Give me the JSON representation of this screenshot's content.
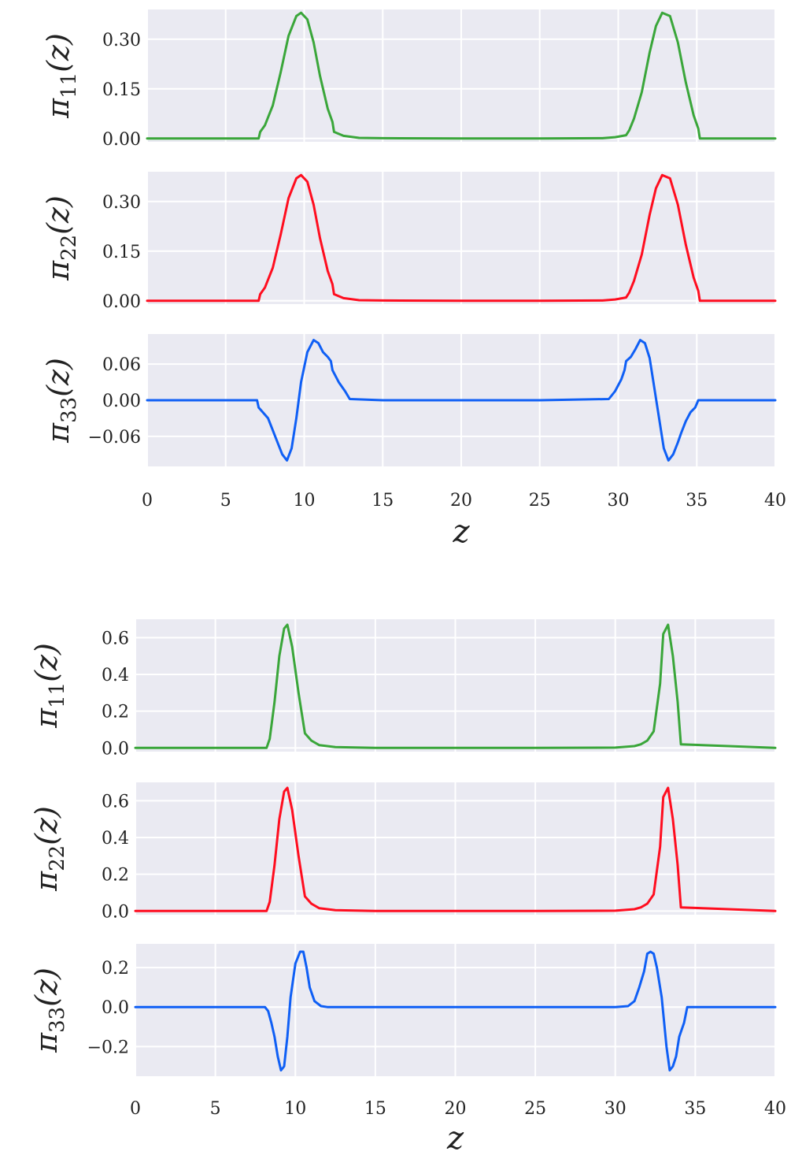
{
  "colors": {
    "green": "#3aa63a",
    "red": "#ff0d1f",
    "blue": "#0f5ff5",
    "plot_background": "#eaeaf2",
    "grid": "#ffffff"
  },
  "chart_data": [
    {
      "type": "line",
      "xlabel": "z",
      "xlim": [
        0,
        40
      ],
      "xticks": [
        "0",
        "5",
        "10",
        "15",
        "20",
        "25",
        "30",
        "35",
        "40"
      ],
      "grid": true,
      "subplots": [
        {
          "ylabel": "π11(z)",
          "ylim": [
            -0.01,
            0.39
          ],
          "yticks": [
            "0.00",
            "0.15",
            "0.30"
          ],
          "ytick_values": [
            0,
            0.15,
            0.3
          ],
          "color": "#3aa63a",
          "x": [
            0,
            7.1,
            7.2,
            7.5,
            8.0,
            8.5,
            9.0,
            9.5,
            9.8,
            10.2,
            10.6,
            11.0,
            11.5,
            11.8,
            11.9,
            12.5,
            13.5,
            15,
            20,
            25,
            29,
            29.8,
            30.5,
            30.7,
            31,
            31.5,
            32,
            32.4,
            32.8,
            33.3,
            33.8,
            34.3,
            34.8,
            35.1,
            35.2,
            40
          ],
          "y": [
            0,
            0,
            0.02,
            0.04,
            0.1,
            0.2,
            0.31,
            0.37,
            0.38,
            0.36,
            0.29,
            0.19,
            0.09,
            0.05,
            0.02,
            0.008,
            0.002,
            0.001,
            0,
            0,
            0.001,
            0.004,
            0.01,
            0.025,
            0.06,
            0.14,
            0.26,
            0.34,
            0.38,
            0.37,
            0.29,
            0.17,
            0.07,
            0.03,
            0,
            0
          ]
        },
        {
          "ylabel": "π22(z)",
          "ylim": [
            -0.01,
            0.39
          ],
          "yticks": [
            "0.00",
            "0.15",
            "0.30"
          ],
          "ytick_values": [
            0,
            0.15,
            0.3
          ],
          "color": "#ff0d1f",
          "x": [
            0,
            7.1,
            7.2,
            7.5,
            8.0,
            8.5,
            9.0,
            9.5,
            9.8,
            10.2,
            10.6,
            11.0,
            11.5,
            11.8,
            11.9,
            12.5,
            13.5,
            15,
            20,
            25,
            29,
            29.8,
            30.5,
            30.7,
            31,
            31.5,
            32,
            32.4,
            32.8,
            33.3,
            33.8,
            34.3,
            34.8,
            35.1,
            35.2,
            40
          ],
          "y": [
            0,
            0,
            0.02,
            0.04,
            0.1,
            0.2,
            0.31,
            0.37,
            0.38,
            0.36,
            0.29,
            0.19,
            0.09,
            0.05,
            0.02,
            0.008,
            0.002,
            0.001,
            0,
            0,
            0.001,
            0.004,
            0.01,
            0.025,
            0.06,
            0.14,
            0.26,
            0.34,
            0.38,
            0.37,
            0.29,
            0.17,
            0.07,
            0.03,
            0,
            0
          ]
        },
        {
          "ylabel": "π33(z)",
          "ylim": [
            -0.11,
            0.11
          ],
          "yticks": [
            "0.06",
            "0.00",
            "−0.06"
          ],
          "ytick_values": [
            0.06,
            0,
            -0.06
          ],
          "color": "#0f5ff5",
          "x": [
            0,
            7.0,
            7.1,
            7.3,
            7.7,
            8.0,
            8.3,
            8.6,
            8.9,
            9.2,
            9.5,
            9.8,
            10.2,
            10.6,
            10.9,
            11.2,
            11.5,
            11.7,
            11.8,
            12.2,
            12.6,
            12.9,
            15,
            20,
            25,
            29.4,
            29.8,
            30.2,
            30.4,
            30.5,
            30.8,
            31.1,
            31.4,
            31.7,
            32.0,
            32.3,
            32.6,
            32.9,
            33.2,
            33.5,
            33.8,
            34.0,
            34.3,
            34.6,
            34.9,
            35.1,
            35.2,
            40
          ],
          "y": [
            0,
            0,
            -0.012,
            -0.018,
            -0.03,
            -0.05,
            -0.07,
            -0.09,
            -0.1,
            -0.08,
            -0.03,
            0.03,
            0.08,
            0.1,
            0.095,
            0.08,
            0.072,
            0.065,
            0.05,
            0.03,
            0.015,
            0.002,
            0,
            0,
            0,
            0.002,
            0.015,
            0.035,
            0.05,
            0.065,
            0.072,
            0.085,
            0.1,
            0.095,
            0.07,
            0.02,
            -0.03,
            -0.08,
            -0.1,
            -0.09,
            -0.07,
            -0.055,
            -0.035,
            -0.02,
            -0.012,
            0,
            0,
            0
          ]
        }
      ]
    },
    {
      "type": "line",
      "xlabel": "z",
      "xlim": [
        0,
        40
      ],
      "xticks": [
        "0",
        "5",
        "10",
        "15",
        "20",
        "25",
        "30",
        "35",
        "40"
      ],
      "grid": true,
      "subplots": [
        {
          "ylabel": "π11(z)",
          "ylim": [
            -0.02,
            0.7
          ],
          "yticks": [
            "0.0",
            "0.2",
            "0.4",
            "0.6"
          ],
          "ytick_values": [
            0,
            0.2,
            0.4,
            0.6
          ],
          "color": "#3aa63a",
          "x": [
            0,
            8.2,
            8.4,
            8.7,
            9.0,
            9.3,
            9.5,
            9.8,
            10.2,
            10.6,
            11.0,
            11.5,
            12.5,
            15,
            20,
            25,
            30,
            31.2,
            31.6,
            32.0,
            32.4,
            32.8,
            33.0,
            33.3,
            33.6,
            33.9,
            34.1,
            40
          ],
          "y": [
            0,
            0,
            0.05,
            0.25,
            0.5,
            0.65,
            0.67,
            0.55,
            0.3,
            0.08,
            0.04,
            0.015,
            0.005,
            0,
            0,
            0,
            0.002,
            0.01,
            0.02,
            0.04,
            0.09,
            0.35,
            0.62,
            0.67,
            0.5,
            0.25,
            0.02,
            0
          ]
        },
        {
          "ylabel": "π22(z)",
          "ylim": [
            -0.02,
            0.7
          ],
          "yticks": [
            "0.0",
            "0.2",
            "0.4",
            "0.6"
          ],
          "ytick_values": [
            0,
            0.2,
            0.4,
            0.6
          ],
          "color": "#ff0d1f",
          "x": [
            0,
            8.2,
            8.4,
            8.7,
            9.0,
            9.3,
            9.5,
            9.8,
            10.2,
            10.6,
            11.0,
            11.5,
            12.5,
            15,
            20,
            25,
            30,
            31.2,
            31.6,
            32.0,
            32.4,
            32.8,
            33.0,
            33.3,
            33.6,
            33.9,
            34.1,
            40
          ],
          "y": [
            0,
            0,
            0.05,
            0.25,
            0.5,
            0.65,
            0.67,
            0.55,
            0.3,
            0.08,
            0.04,
            0.015,
            0.005,
            0,
            0,
            0,
            0.002,
            0.01,
            0.02,
            0.04,
            0.09,
            0.35,
            0.62,
            0.67,
            0.5,
            0.25,
            0.02,
            0
          ]
        },
        {
          "ylabel": "π33(z)",
          "ylim": [
            -0.35,
            0.32
          ],
          "yticks": [
            "0.2",
            "0.0",
            "−0.2"
          ],
          "ytick_values": [
            0.2,
            0,
            -0.2
          ],
          "color": "#0f5ff5",
          "x": [
            0,
            8.1,
            8.3,
            8.5,
            8.7,
            8.9,
            9.1,
            9.3,
            9.5,
            9.7,
            10.0,
            10.3,
            10.5,
            10.7,
            10.9,
            11.2,
            11.6,
            12,
            15,
            20,
            25,
            30,
            30.8,
            31.2,
            31.5,
            31.8,
            32.0,
            32.2,
            32.4,
            32.6,
            32.9,
            33.2,
            33.4,
            33.6,
            33.8,
            34.0,
            34.3,
            34.5,
            40
          ],
          "y": [
            0,
            0,
            -0.02,
            -0.08,
            -0.15,
            -0.25,
            -0.32,
            -0.3,
            -0.15,
            0.05,
            0.22,
            0.28,
            0.28,
            0.2,
            0.1,
            0.03,
            0.005,
            0,
            0,
            0,
            0,
            0,
            0.005,
            0.03,
            0.1,
            0.18,
            0.27,
            0.28,
            0.27,
            0.2,
            0.05,
            -0.2,
            -0.32,
            -0.3,
            -0.25,
            -0.15,
            -0.08,
            0,
            0
          ]
        }
      ]
    }
  ]
}
